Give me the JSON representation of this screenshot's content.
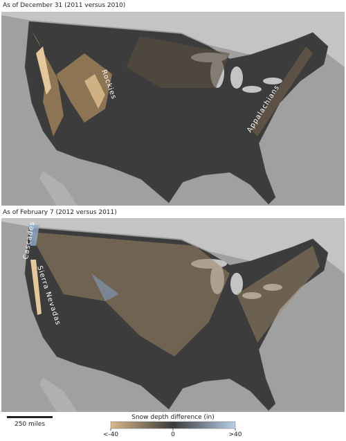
{
  "panels": [
    {
      "title": "As of December 31 (2011 versus 2010)",
      "labels": [
        "Rockies",
        "Appalachians"
      ]
    },
    {
      "title": "As of February 7 (2012 versus 2011)",
      "labels": [
        "Cascades",
        "Sierra Nevadas"
      ]
    }
  ],
  "scale_bar": "250 miles",
  "legend": {
    "title": "Snow depth difference (in)",
    "ticks": [
      {
        "value": -40,
        "label": "<-40"
      },
      0,
      {
        "value": 40,
        "label": ">40"
      }
    ]
  }
}
